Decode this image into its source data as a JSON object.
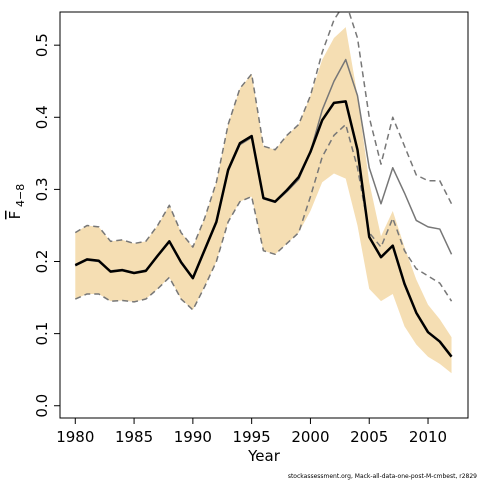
{
  "chart_data": {
    "type": "line",
    "xlabel": "Year",
    "ylabel": {
      "main": "F",
      "sub": "4−8"
    },
    "footer": "stockassessment.org, Mack-all-data-one-post-M-cmbest, r2829",
    "x": [
      1980,
      1981,
      1982,
      1983,
      1984,
      1985,
      1986,
      1987,
      1988,
      1989,
      1990,
      1991,
      1992,
      1993,
      1994,
      1995,
      1996,
      1997,
      1998,
      1999,
      2000,
      2001,
      2002,
      2003,
      2004,
      2005,
      2006,
      2007,
      2008,
      2009,
      2010,
      2011,
      2012
    ],
    "band": {
      "color": "#f5deb3",
      "upper": [
        0.24,
        0.25,
        0.248,
        0.228,
        0.23,
        0.225,
        0.228,
        0.25,
        0.278,
        0.24,
        0.22,
        0.26,
        0.31,
        0.39,
        0.44,
        0.46,
        0.36,
        0.355,
        0.375,
        0.39,
        0.43,
        0.48,
        0.51,
        0.525,
        0.43,
        0.31,
        0.235,
        0.27,
        0.22,
        0.175,
        0.14,
        0.12,
        0.095
      ],
      "lower": [
        0.148,
        0.155,
        0.155,
        0.145,
        0.146,
        0.144,
        0.148,
        0.162,
        0.178,
        0.148,
        0.133,
        0.165,
        0.2,
        0.255,
        0.283,
        0.29,
        0.215,
        0.21,
        0.225,
        0.24,
        0.27,
        0.31,
        0.322,
        0.315,
        0.25,
        0.162,
        0.145,
        0.155,
        0.11,
        0.085,
        0.068,
        0.058,
        0.045
      ]
    },
    "series": [
      {
        "color": "#777777",
        "width": 1.5,
        "dash": true,
        "values": [
          0.24,
          0.25,
          0.248,
          0.228,
          0.23,
          0.225,
          0.228,
          0.25,
          0.278,
          0.24,
          0.22,
          0.26,
          0.31,
          0.39,
          0.44,
          0.46,
          0.36,
          0.355,
          0.375,
          0.39,
          0.43,
          0.49,
          0.535,
          0.56,
          0.51,
          0.4,
          0.335,
          0.4,
          0.36,
          0.32,
          0.312,
          0.312,
          0.28
        ]
      },
      {
        "color": "#777777",
        "width": 1.5,
        "dash": true,
        "values": [
          0.148,
          0.155,
          0.155,
          0.145,
          0.146,
          0.144,
          0.148,
          0.162,
          0.178,
          0.148,
          0.133,
          0.165,
          0.2,
          0.255,
          0.283,
          0.29,
          0.215,
          0.21,
          0.225,
          0.24,
          0.29,
          0.345,
          0.375,
          0.39,
          0.33,
          0.24,
          0.22,
          0.26,
          0.215,
          0.19,
          0.18,
          0.17,
          0.145
        ]
      },
      {
        "color": "#777777",
        "width": 1.5,
        "dash": false,
        "values": [
          0.194,
          0.202,
          0.2,
          0.187,
          0.189,
          0.185,
          0.188,
          0.207,
          0.227,
          0.198,
          0.176,
          0.215,
          0.254,
          0.325,
          0.362,
          0.372,
          0.287,
          0.282,
          0.297,
          0.314,
          0.352,
          0.41,
          0.45,
          0.48,
          0.43,
          0.33,
          0.28,
          0.33,
          0.295,
          0.257,
          0.248,
          0.245,
          0.21
        ]
      },
      {
        "color": "#000000",
        "width": 2.5,
        "dash": false,
        "values": [
          0.195,
          0.203,
          0.201,
          0.186,
          0.188,
          0.184,
          0.187,
          0.208,
          0.228,
          0.199,
          0.177,
          0.216,
          0.255,
          0.327,
          0.364,
          0.374,
          0.288,
          0.283,
          0.299,
          0.317,
          0.352,
          0.396,
          0.42,
          0.422,
          0.355,
          0.234,
          0.206,
          0.222,
          0.169,
          0.129,
          0.102,
          0.089,
          0.068
        ]
      }
    ],
    "xlim": [
      1978.7,
      2013.4
    ],
    "ylim": [
      -0.017,
      0.546
    ],
    "xticks": [
      1980,
      1985,
      1990,
      1995,
      2000,
      2005,
      2010
    ],
    "yticks": [
      {
        "value": 0,
        "label": "0.0"
      },
      0.1,
      0.2,
      0.3,
      0.4,
      0.5
    ]
  }
}
